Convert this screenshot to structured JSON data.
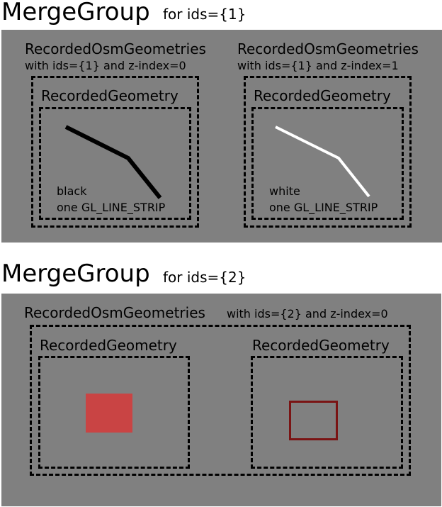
{
  "group1": {
    "title": "MergeGroup",
    "subtitle": "for ids={1}",
    "osm_left": {
      "title": "RecordedOsmGeometries",
      "desc": "with ids={1} and z-index=0",
      "geom_title": "RecordedGeometry",
      "color_label": "black",
      "type_label": "one GL_LINE_STRIP",
      "line_color": "#000000"
    },
    "osm_right": {
      "title": "RecordedOsmGeometries",
      "desc": "with ids={1} and z-index=1",
      "geom_title": "RecordedGeometry",
      "color_label": "white",
      "type_label": "one GL_LINE_STRIP",
      "line_color": "#ffffff"
    }
  },
  "group2": {
    "title": "MergeGroup",
    "subtitle": "for ids={2}",
    "osm": {
      "title": "RecordedOsmGeometries",
      "desc": "with ids={2} and z-index=0",
      "geom_left_title": "RecordedGeometry",
      "geom_right_title": "RecordedGeometry",
      "fill_color": "#c94444",
      "outline_color": "#7a1414"
    }
  },
  "colors": {
    "panel": "#808080",
    "background": "#ffffff"
  }
}
